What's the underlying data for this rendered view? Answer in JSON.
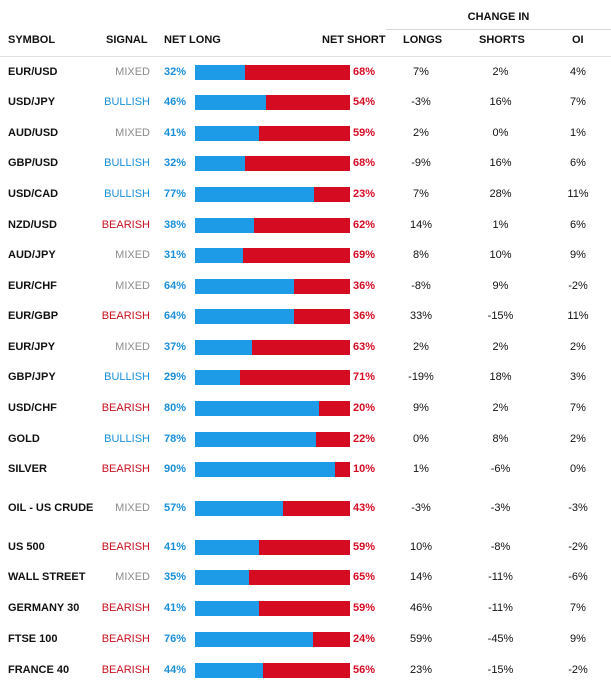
{
  "header": {
    "change_in": "CHANGE IN",
    "symbol": "SYMBOL",
    "signal": "SIGNAL",
    "net_long": "NET LONG",
    "net_short": "NET SHORT",
    "longs": "LONGS",
    "shorts": "SHORTS",
    "oi": "OI"
  },
  "colors": {
    "net_long": "#1e9be6",
    "net_short": "#d50b22",
    "mixed": "#8c8c8c",
    "bullish": "#1a8fd9",
    "bearish": "#c8101f"
  },
  "rows": [
    {
      "symbol": "EUR/USD",
      "signal": "MIXED",
      "net_long": "32%",
      "net_short": "68%",
      "long_fraction": 0.32,
      "longs": "7%",
      "shorts": "2%",
      "oi": "4%"
    },
    {
      "symbol": "USD/JPY",
      "signal": "BULLISH",
      "net_long": "46%",
      "net_short": "54%",
      "long_fraction": 0.46,
      "longs": "-3%",
      "shorts": "16%",
      "oi": "7%"
    },
    {
      "symbol": "AUD/USD",
      "signal": "MIXED",
      "net_long": "41%",
      "net_short": "59%",
      "long_fraction": 0.41,
      "longs": "2%",
      "shorts": "0%",
      "oi": "1%"
    },
    {
      "symbol": "GBP/USD",
      "signal": "BULLISH",
      "net_long": "32%",
      "net_short": "68%",
      "long_fraction": 0.32,
      "longs": "-9%",
      "shorts": "16%",
      "oi": "6%"
    },
    {
      "symbol": "USD/CAD",
      "signal": "BULLISH",
      "net_long": "77%",
      "net_short": "23%",
      "long_fraction": 0.77,
      "longs": "7%",
      "shorts": "28%",
      "oi": "11%"
    },
    {
      "symbol": "NZD/USD",
      "signal": "BEARISH",
      "net_long": "38%",
      "net_short": "62%",
      "long_fraction": 0.38,
      "longs": "14%",
      "shorts": "1%",
      "oi": "6%"
    },
    {
      "symbol": "AUD/JPY",
      "signal": "MIXED",
      "net_long": "31%",
      "net_short": "69%",
      "long_fraction": 0.31,
      "longs": "8%",
      "shorts": "10%",
      "oi": "9%"
    },
    {
      "symbol": "EUR/CHF",
      "signal": "MIXED",
      "net_long": "64%",
      "net_short": "36%",
      "long_fraction": 0.64,
      "longs": "-8%",
      "shorts": "9%",
      "oi": "-2%"
    },
    {
      "symbol": "EUR/GBP",
      "signal": "BEARISH",
      "net_long": "64%",
      "net_short": "36%",
      "long_fraction": 0.64,
      "longs": "33%",
      "shorts": "-15%",
      "oi": "11%"
    },
    {
      "symbol": "EUR/JPY",
      "signal": "MIXED",
      "net_long": "37%",
      "net_short": "63%",
      "long_fraction": 0.37,
      "longs": "2%",
      "shorts": "2%",
      "oi": "2%"
    },
    {
      "symbol": "GBP/JPY",
      "signal": "BULLISH",
      "net_long": "29%",
      "net_short": "71%",
      "long_fraction": 0.29,
      "longs": "-19%",
      "shorts": "18%",
      "oi": "3%"
    },
    {
      "symbol": "USD/CHF",
      "signal": "BEARISH",
      "net_long": "80%",
      "net_short": "20%",
      "long_fraction": 0.8,
      "longs": "9%",
      "shorts": "2%",
      "oi": "7%"
    },
    {
      "symbol": "GOLD",
      "signal": "BULLISH",
      "net_long": "78%",
      "net_short": "22%",
      "long_fraction": 0.78,
      "longs": "0%",
      "shorts": "8%",
      "oi": "2%"
    },
    {
      "symbol": "SILVER",
      "signal": "BEARISH",
      "net_long": "90%",
      "net_short": "10%",
      "long_fraction": 0.9,
      "longs": "1%",
      "shorts": "-6%",
      "oi": "0%"
    },
    {
      "symbol": "OIL - US CRUDE",
      "signal": "MIXED",
      "net_long": "57%",
      "net_short": "43%",
      "long_fraction": 0.57,
      "longs": "-3%",
      "shorts": "-3%",
      "oi": "-3%"
    },
    {
      "symbol": "US 500",
      "signal": "BEARISH",
      "net_long": "41%",
      "net_short": "59%",
      "long_fraction": 0.41,
      "longs": "10%",
      "shorts": "-8%",
      "oi": "-2%"
    },
    {
      "symbol": "WALL STREET",
      "signal": "MIXED",
      "net_long": "35%",
      "net_short": "65%",
      "long_fraction": 0.35,
      "longs": "14%",
      "shorts": "-11%",
      "oi": "-6%"
    },
    {
      "symbol": "GERMANY 30",
      "signal": "BEARISH",
      "net_long": "41%",
      "net_short": "59%",
      "long_fraction": 0.41,
      "longs": "46%",
      "shorts": "-11%",
      "oi": "7%"
    },
    {
      "symbol": "FTSE 100",
      "signal": "BEARISH",
      "net_long": "76%",
      "net_short": "24%",
      "long_fraction": 0.76,
      "longs": "59%",
      "shorts": "-45%",
      "oi": "9%"
    },
    {
      "symbol": "FRANCE 40",
      "signal": "BEARISH",
      "net_long": "44%",
      "net_short": "56%",
      "long_fraction": 0.44,
      "longs": "23%",
      "shorts": "-15%",
      "oi": "-2%"
    }
  ]
}
